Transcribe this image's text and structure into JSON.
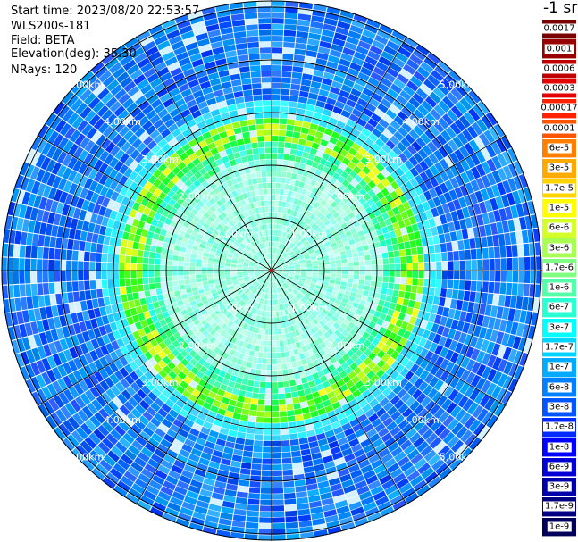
{
  "header": {
    "start_time": "Start time: 2023/08/20 22:53:57",
    "station": "WLS200s-181",
    "field": "Field: BETA",
    "elevation": "Elevation(deg): 35.30",
    "nrays": "NRays: 120"
  },
  "unit_label": "-1 sr",
  "range_ring_labels": [
    "1.00km",
    "2.00km",
    "3.00km",
    "4.00km",
    "5.00km"
  ],
  "n_rays": 120,
  "colorbar": [
    {
      "label": "0.0017",
      "color": "#7a0000"
    },
    {
      "label": "0.001",
      "color": "#9a0000"
    },
    {
      "label": "0.0006",
      "color": "#c00000"
    },
    {
      "label": "0.0003",
      "color": "#e60000"
    },
    {
      "label": "0.00017",
      "color": "#ff2200"
    },
    {
      "label": "0.0001",
      "color": "#ff5500"
    },
    {
      "label": "6e-5",
      "color": "#ff8000"
    },
    {
      "label": "3e-5",
      "color": "#ffaa00"
    },
    {
      "label": "1.7e-5",
      "color": "#ffd400"
    },
    {
      "label": "1e-5",
      "color": "#ffff00"
    },
    {
      "label": "6e-6",
      "color": "#d4ff2a"
    },
    {
      "label": "3e-6",
      "color": "#aaff55"
    },
    {
      "label": "1.7e-6",
      "color": "#80ff80"
    },
    {
      "label": "1e-6",
      "color": "#55ffaa"
    },
    {
      "label": "6e-7",
      "color": "#2affd4"
    },
    {
      "label": "3e-7",
      "color": "#00ffff"
    },
    {
      "label": "1.7e-7",
      "color": "#00d4ff"
    },
    {
      "label": "1e-7",
      "color": "#00aaff"
    },
    {
      "label": "6e-8",
      "color": "#0080ff"
    },
    {
      "label": "3e-8",
      "color": "#0055ff"
    },
    {
      "label": "1.7e-8",
      "color": "#002aff"
    },
    {
      "label": "1e-8",
      "color": "#0000ff"
    },
    {
      "label": "6e-9",
      "color": "#0000d4"
    },
    {
      "label": "3e-9",
      "color": "#0000aa"
    },
    {
      "label": "1.7e-9",
      "color": "#000080"
    },
    {
      "label": "1e-9",
      "color": "#00005a"
    }
  ]
}
